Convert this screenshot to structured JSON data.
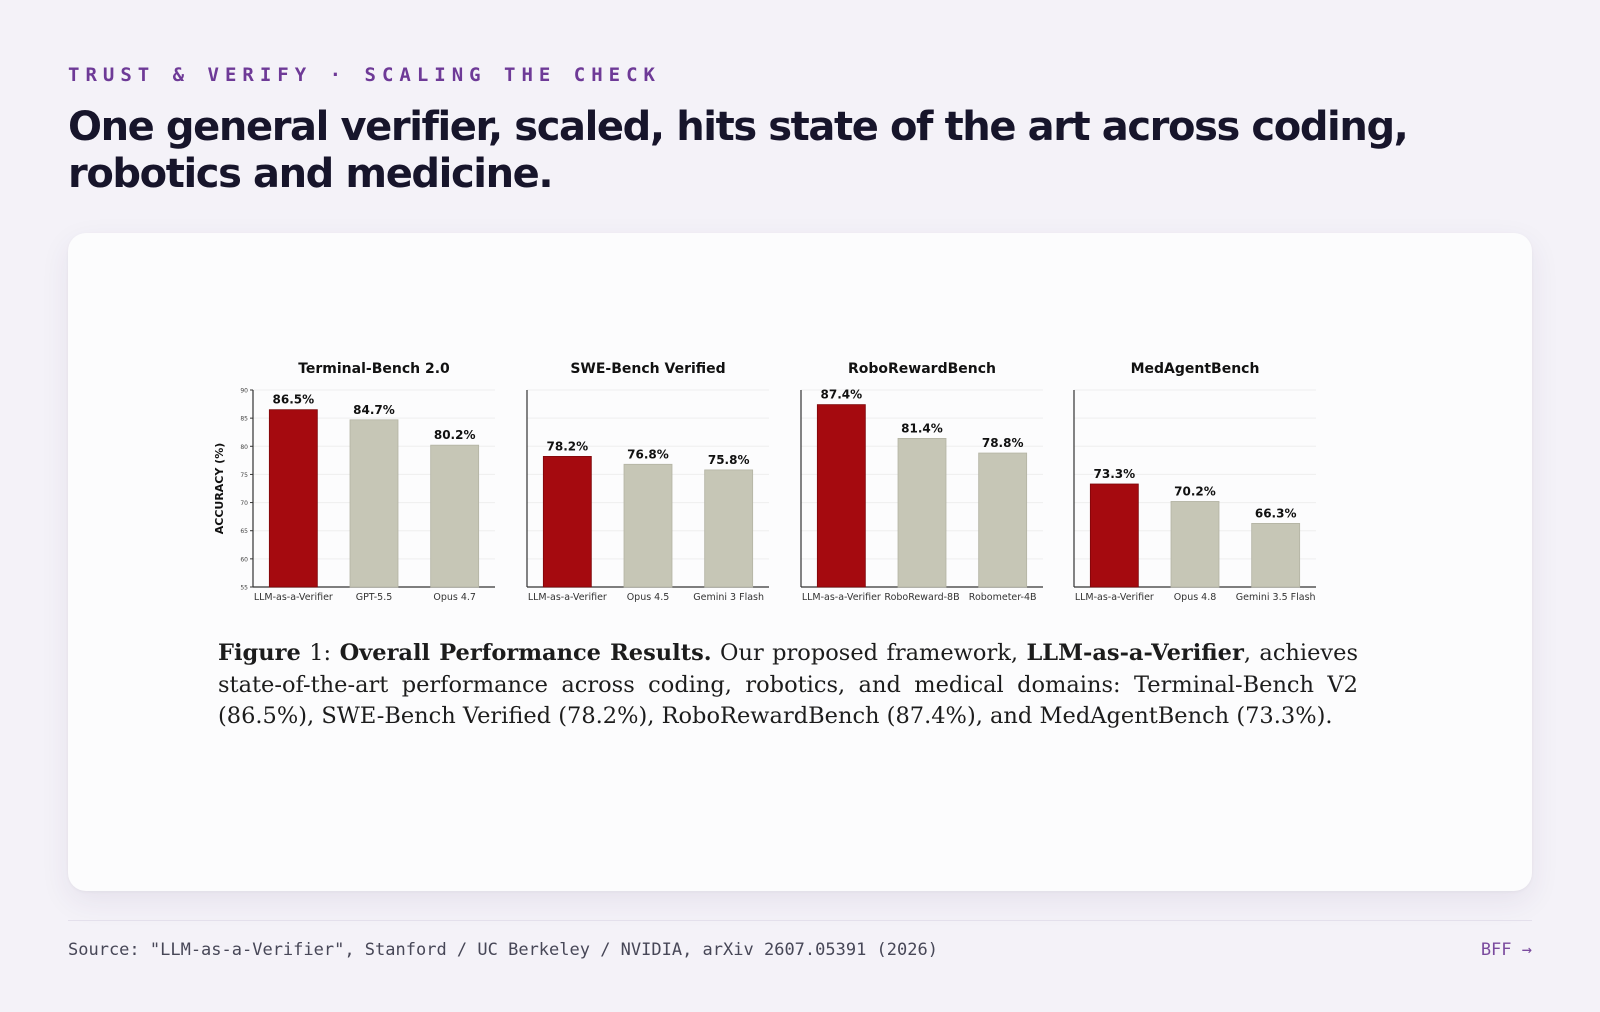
{
  "eyebrow": {
    "section": "TRUST & VERIFY",
    "separator": "·",
    "subsection": "SCALING THE CHECK"
  },
  "headline": "One general verifier, scaled, hits state of the art across coding, robotics and medicine.",
  "caption": {
    "figure_label": "Figure",
    "figure_number": "1:",
    "title": "Overall Performance Results.",
    "text_pre": "Our proposed framework,",
    "method": "LLM-as-a-Verifier",
    "text_post": ", achieves state-of-the-art performance across coding, robotics, and medical domains: Terminal-Bench V2 (86.5%), SWE-Bench Verified (78.2%), RoboRewardBench (87.4%), and MedAgentBench (73.3%)."
  },
  "footer": {
    "source": "Source: \"LLM-as-a-Verifier\", Stanford / UC Berkeley / NVIDIA, arXiv 2607.05391 (2026)",
    "next_label": "BFF →"
  },
  "colors": {
    "highlight_bar": "#a50a0f",
    "baseline_bar": "#c6c6b6",
    "accent": "#6e3a97",
    "headline": "#17152b"
  },
  "chart_data": [
    {
      "type": "bar",
      "title": "Terminal-Bench 2.0",
      "ylabel": "ACCURACY (%)",
      "ylim": [
        55,
        90
      ],
      "yticks": [
        55,
        60,
        65,
        70,
        75,
        80,
        85,
        90
      ],
      "categories": [
        "LLM-as-a-Verifier",
        "GPT-5.5",
        "Opus 4.7"
      ],
      "values": [
        86.5,
        84.7,
        80.2
      ],
      "labels": [
        "86.5%",
        "84.7%",
        "80.2%"
      ],
      "highlight": [
        true,
        false,
        false
      ],
      "grid": true
    },
    {
      "type": "bar",
      "title": "SWE-Bench Verified",
      "ylim": [
        55,
        90
      ],
      "categories": [
        "LLM-as-a-Verifier",
        "Opus 4.5",
        "Gemini 3 Flash"
      ],
      "values": [
        78.2,
        76.8,
        75.8
      ],
      "labels": [
        "78.2%",
        "76.8%",
        "75.8%"
      ],
      "highlight": [
        true,
        false,
        false
      ],
      "grid": true
    },
    {
      "type": "bar",
      "title": "RoboRewardBench",
      "ylim": [
        55,
        90
      ],
      "categories": [
        "LLM-as-a-Verifier",
        "RoboReward-8B",
        "Robometer-4B"
      ],
      "values": [
        87.4,
        81.4,
        78.8
      ],
      "labels": [
        "87.4%",
        "81.4%",
        "78.8%"
      ],
      "highlight": [
        true,
        false,
        false
      ],
      "grid": true
    },
    {
      "type": "bar",
      "title": "MedAgentBench",
      "ylim": [
        55,
        90
      ],
      "categories": [
        "LLM-as-a-Verifier",
        "Opus 4.8",
        "Gemini 3.5 Flash"
      ],
      "values": [
        73.3,
        70.2,
        66.3
      ],
      "labels": [
        "73.3%",
        "70.2%",
        "66.3%"
      ],
      "highlight": [
        true,
        false,
        false
      ],
      "grid": true
    }
  ]
}
